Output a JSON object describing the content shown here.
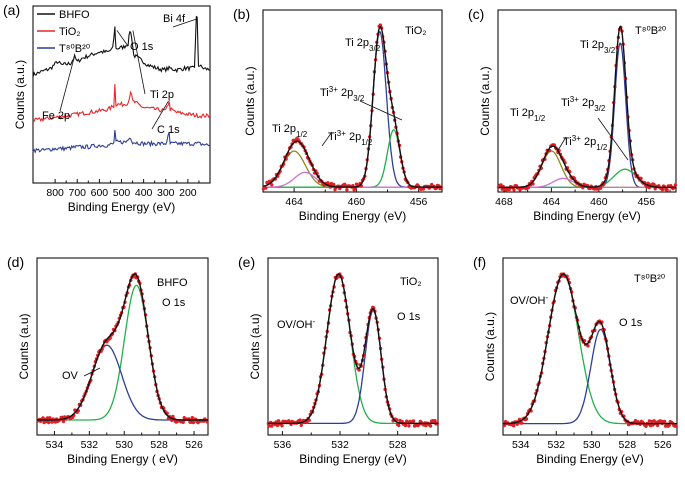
{
  "colors": {
    "black": "#111111",
    "red": "#e8262a",
    "blue": "#2f3f98",
    "green": "#22b14c",
    "magenta": "#d070d0",
    "orange": "#e39b1b",
    "olive": "#8a8a20",
    "data_dot": "#e01f26"
  },
  "chart_data": [
    {
      "id": "a",
      "panel_label": "(a)",
      "type": "line",
      "title": "",
      "xlabel": "Binding Energy (eV)",
      "ylabel": "Counts (a.u.)",
      "xlim": [
        900,
        100
      ],
      "x_reversed": true,
      "xticks": [
        {
          "v": 800,
          "label": "800"
        },
        {
          "v": 700,
          "label": "700"
        },
        {
          "v": 600,
          "label": "600"
        },
        {
          "v": 500,
          "label": "500"
        },
        {
          "v": 400,
          "label": "400"
        },
        {
          "v": 300,
          "label": "300"
        },
        {
          "v": 200,
          "label": "200"
        }
      ],
      "legend": [
        {
          "label": "BHFO",
          "color_key": "black"
        },
        {
          "label": "TiO₂",
          "color_key": "red"
        },
        {
          "label": "T⁸⁰B²⁰",
          "color_key": "blue"
        }
      ],
      "series": [
        {
          "name": "BHFO",
          "color_key": "black",
          "points": [
            [
              900,
              0.66
            ],
            [
              860,
              0.68
            ],
            [
              820,
              0.7
            ],
            [
              790,
              0.74
            ],
            [
              770,
              0.72
            ],
            [
              730,
              0.73
            ],
            [
              712,
              0.77
            ],
            [
              700,
              0.74
            ],
            [
              680,
              0.76
            ],
            [
              640,
              0.78
            ],
            [
              600,
              0.8
            ],
            [
              560,
              0.8
            ],
            [
              540,
              0.82
            ],
            [
              530,
              0.95
            ],
            [
              525,
              0.82
            ],
            [
              490,
              0.83
            ],
            [
              470,
              0.85
            ],
            [
              462,
              0.93
            ],
            [
              455,
              0.9
            ],
            [
              445,
              0.78
            ],
            [
              400,
              0.74
            ],
            [
              380,
              0.72
            ],
            [
              340,
              0.7
            ],
            [
              310,
              0.69
            ],
            [
              285,
              0.7
            ],
            [
              250,
              0.69
            ],
            [
              215,
              0.7
            ],
            [
              170,
              0.7
            ],
            [
              162,
              1.02
            ],
            [
              158,
              1.0
            ],
            [
              152,
              0.72
            ],
            [
              130,
              0.7
            ],
            [
              100,
              0.69
            ]
          ]
        },
        {
          "name": "TiO2",
          "color_key": "red",
          "points": [
            [
              900,
              0.38
            ],
            [
              850,
              0.39
            ],
            [
              800,
              0.4
            ],
            [
              750,
              0.41
            ],
            [
              700,
              0.42
            ],
            [
              650,
              0.43
            ],
            [
              600,
              0.44
            ],
            [
              560,
              0.45
            ],
            [
              535,
              0.47
            ],
            [
              530,
              0.6
            ],
            [
              525,
              0.48
            ],
            [
              490,
              0.48
            ],
            [
              470,
              0.49
            ],
            [
              459,
              0.56
            ],
            [
              450,
              0.5
            ],
            [
              400,
              0.46
            ],
            [
              350,
              0.45
            ],
            [
              300,
              0.44
            ],
            [
              285,
              0.5
            ],
            [
              280,
              0.45
            ],
            [
              250,
              0.43
            ],
            [
              200,
              0.42
            ],
            [
              150,
              0.41
            ],
            [
              100,
              0.41
            ]
          ]
        },
        {
          "name": "T80B20",
          "color_key": "blue",
          "points": [
            [
              900,
              0.2
            ],
            [
              850,
              0.2
            ],
            [
              800,
              0.21
            ],
            [
              750,
              0.21
            ],
            [
              700,
              0.22
            ],
            [
              650,
              0.22
            ],
            [
              600,
              0.23
            ],
            [
              560,
              0.23
            ],
            [
              535,
              0.24
            ],
            [
              530,
              0.32
            ],
            [
              525,
              0.25
            ],
            [
              480,
              0.25
            ],
            [
              459,
              0.28
            ],
            [
              450,
              0.25
            ],
            [
              400,
              0.24
            ],
            [
              300,
              0.24
            ],
            [
              285,
              0.3
            ],
            [
              280,
              0.24
            ],
            [
              200,
              0.24
            ],
            [
              150,
              0.24
            ],
            [
              100,
              0.23
            ]
          ]
        }
      ],
      "annotations": [
        {
          "text": "O 1s",
          "x": 530
        },
        {
          "text": "Ti 2p",
          "x": 459
        },
        {
          "text": "Fe 2p",
          "x": 711
        },
        {
          "text": "C 1s",
          "x": 285
        },
        {
          "text": "Bi 4f",
          "x": 160
        }
      ]
    },
    {
      "id": "b",
      "panel_label": "(b)",
      "type": "line",
      "title": "TiO₂",
      "xlabel": "Binding Energy (eV)",
      "ylabel": "Counts (a.u.)",
      "xlim": [
        466,
        454.5
      ],
      "x_reversed": true,
      "xticks": [
        {
          "v": 464,
          "label": "464"
        },
        {
          "v": 460,
          "label": "460"
        },
        {
          "v": 456,
          "label": "456"
        }
      ],
      "components": [
        {
          "name": "Ti 2p3/2",
          "color_key": "blue",
          "center": 458.5,
          "amp": 0.95,
          "fwhm": 1.0
        },
        {
          "name": "Ti3+ 2p3/2",
          "color_key": "green",
          "center": 457.6,
          "amp": 0.35,
          "fwhm": 0.95
        },
        {
          "name": "Ti 2p1/2",
          "color_key": "olive",
          "center": 464.0,
          "amp": 0.22,
          "fwhm": 1.7
        },
        {
          "name": "Ti3+ 2p1/2",
          "color_key": "magenta",
          "center": 463.3,
          "amp": 0.09,
          "fwhm": 1.6
        }
      ],
      "annotations": [
        {
          "text": "Ti 2p",
          "sub": "3/2",
          "sup": "",
          "x": 460.2
        },
        {
          "text": "Ti",
          "sup": "3+",
          "rest": " 2p",
          "sub": "3/2",
          "x": 459.3
        },
        {
          "text": "Ti 2p",
          "sub": "1/2",
          "sup": "",
          "x": 464.8
        },
        {
          "text": "Ti",
          "sup": "3+",
          "rest": " 2p",
          "sub": "1/2",
          "x": 461.5
        }
      ]
    },
    {
      "id": "c",
      "panel_label": "(c)",
      "type": "line",
      "title": "T⁸⁰B²⁰",
      "xlabel": "Binding Energy (eV)",
      "ylabel": "Counts (a.u.)",
      "xlim": [
        468.5,
        453.5
      ],
      "x_reversed": true,
      "xticks": [
        {
          "v": 468,
          "label": "468"
        },
        {
          "v": 464,
          "label": "464"
        },
        {
          "v": 460,
          "label": "460"
        },
        {
          "v": 456,
          "label": "456"
        }
      ],
      "components": [
        {
          "name": "Ti 2p3/2",
          "color_key": "blue",
          "center": 458.2,
          "amp": 0.95,
          "fwhm": 1.1
        },
        {
          "name": "Ti3+ 2p3/2",
          "color_key": "green",
          "center": 457.8,
          "amp": 0.12,
          "fwhm": 2.2
        },
        {
          "name": "Ti 2p1/2",
          "color_key": "olive",
          "center": 464.0,
          "amp": 0.24,
          "fwhm": 1.9
        },
        {
          "name": "Ti3+ 2p1/2",
          "color_key": "magenta",
          "center": 463.0,
          "amp": 0.06,
          "fwhm": 2.0
        }
      ],
      "annotations": [
        {
          "text": "Ti 2p",
          "sub": "3/2",
          "sup": "",
          "x": 459.6
        },
        {
          "text": "Ti",
          "sup": "3+",
          "rest": " 2p",
          "sub": "3/2",
          "x": 461.3
        },
        {
          "text": "Ti 2p",
          "sub": "1/2",
          "sup": "",
          "x": 465.6
        },
        {
          "text": "Ti",
          "sup": "3+",
          "rest": " 2p",
          "sub": "1/2",
          "x": 461.6
        }
      ]
    },
    {
      "id": "d",
      "panel_label": "(d)",
      "type": "line",
      "title": "BHFO",
      "xlabel": "Binding Energy ( eV)",
      "ylabel": "Counts (a.u)",
      "xlim": [
        535,
        525.2
      ],
      "x_reversed": true,
      "xticks": [
        {
          "v": 534,
          "label": "534"
        },
        {
          "v": 532,
          "label": "532"
        },
        {
          "v": 530,
          "label": "530"
        },
        {
          "v": 528,
          "label": "528"
        },
        {
          "v": 526,
          "label": "526"
        }
      ],
      "components": [
        {
          "name": "O 1s",
          "color_key": "green",
          "center": 529.3,
          "amp": 0.9,
          "fwhm": 1.6
        },
        {
          "name": "OV",
          "color_key": "blue",
          "center": 531.0,
          "amp": 0.5,
          "fwhm": 2.0
        }
      ],
      "annotations": [
        {
          "text": "O 1s",
          "sub": "",
          "sup": "",
          "x": 528.6
        },
        {
          "text": "OV",
          "sub": "",
          "sup": "",
          "x": 532.6
        }
      ]
    },
    {
      "id": "e",
      "panel_label": "(e)",
      "type": "line",
      "title": "TiO₂",
      "xlabel": "Binding Energy (eV)",
      "ylabel": "Counts (a.u)",
      "xlim": [
        537,
        525.2
      ],
      "x_reversed": true,
      "xticks": [
        {
          "v": 536,
          "label": "536"
        },
        {
          "v": 532,
          "label": "532"
        },
        {
          "v": 528,
          "label": "528"
        }
      ],
      "components": [
        {
          "name": "OV/OH-",
          "color_key": "green",
          "center": 532.1,
          "amp": 0.9,
          "fwhm": 1.9
        },
        {
          "name": "O 1s",
          "color_key": "blue",
          "center": 529.7,
          "amp": 0.68,
          "fwhm": 1.3
        }
      ],
      "annotations": [
        {
          "text": "O 1s",
          "sub": "",
          "sup": "",
          "x": 528.0
        },
        {
          "text": "OV/OH",
          "sub": "",
          "sup": "-",
          "x": 534.2
        }
      ]
    },
    {
      "id": "f",
      "panel_label": "(f)",
      "type": "line",
      "title": "T⁸⁰B²⁰",
      "xlabel": "Binding Energy (eV)",
      "ylabel": "Counts (a.u.)",
      "xlim": [
        535,
        525.2
      ],
      "x_reversed": true,
      "xticks": [
        {
          "v": 534,
          "label": "534"
        },
        {
          "v": 532,
          "label": "532"
        },
        {
          "v": 530,
          "label": "530"
        },
        {
          "v": 528,
          "label": "528"
        },
        {
          "v": 526,
          "label": "526"
        }
      ],
      "components": [
        {
          "name": "OV/OH-",
          "color_key": "green",
          "center": 531.6,
          "amp": 0.92,
          "fwhm": 2.0
        },
        {
          "name": "O 1s",
          "color_key": "blue",
          "center": 529.5,
          "amp": 0.58,
          "fwhm": 1.3
        }
      ],
      "annotations": [
        {
          "text": "O 1s",
          "sub": "",
          "sup": "",
          "x": 528.6
        },
        {
          "text": "OV/OH",
          "sub": "",
          "sup": "-",
          "x": 533.6
        }
      ]
    }
  ]
}
